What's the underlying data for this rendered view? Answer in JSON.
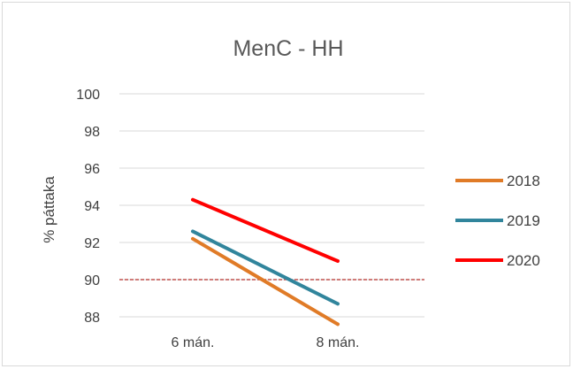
{
  "chart_data": {
    "type": "line",
    "title": "MenC - HH",
    "xlabel": "",
    "ylabel": "% páttaka",
    "categories": [
      "6 mán.",
      "8 mán."
    ],
    "ylim": [
      88,
      100
    ],
    "yticks": [
      88,
      90,
      92,
      94,
      96,
      98,
      100
    ],
    "grid": true,
    "legend_position": "right",
    "reference_line": {
      "y": 90,
      "color": "#c0504d",
      "style": "dashed"
    },
    "series": [
      {
        "name": "2018",
        "color": "#e07b27",
        "values": [
          92.2,
          87.6
        ]
      },
      {
        "name": "2019",
        "color": "#31859c",
        "values": [
          92.6,
          88.7
        ]
      },
      {
        "name": "2020",
        "color": "#ff0000",
        "values": [
          94.3,
          91.0
        ]
      }
    ]
  }
}
